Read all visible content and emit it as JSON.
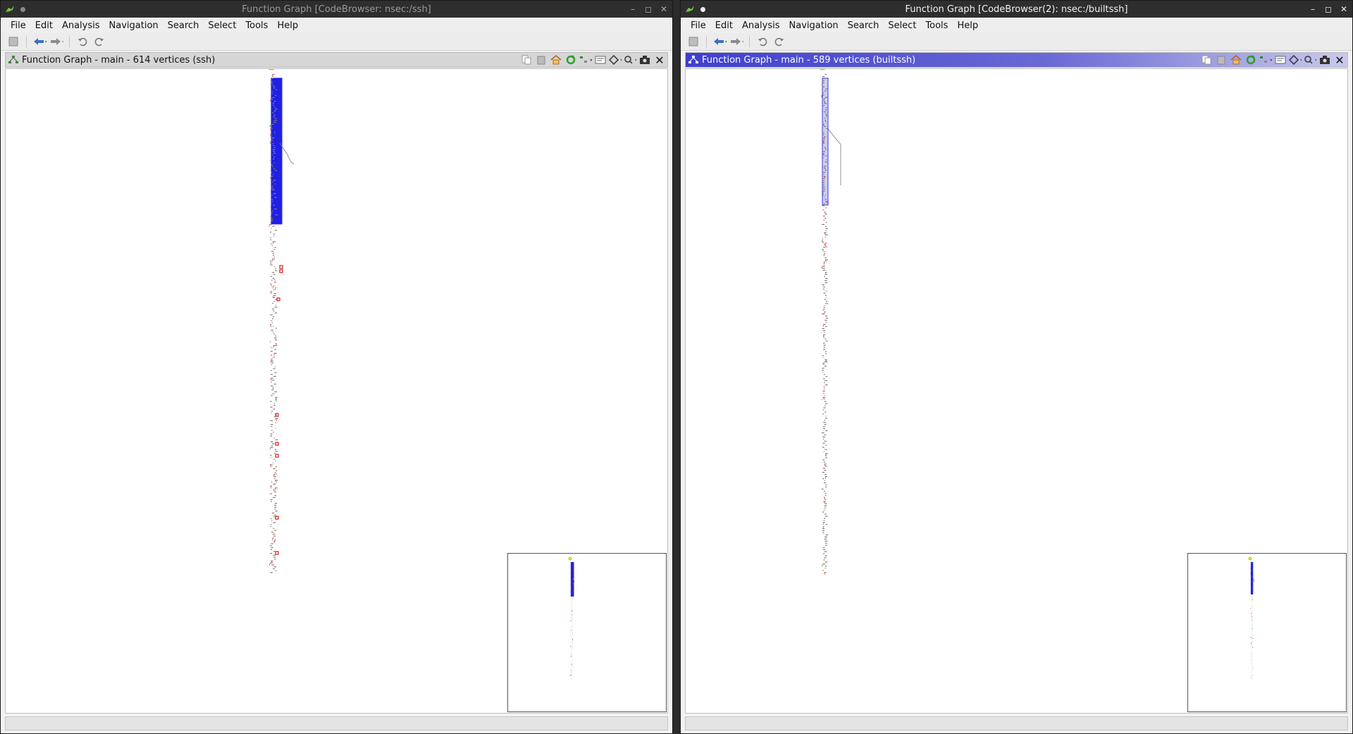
{
  "windows": [
    {
      "id": "left",
      "active": false,
      "title": "Function Graph [CodeBrowser: nsec:/ssh]",
      "menu": [
        "File",
        "Edit",
        "Analysis",
        "Navigation",
        "Search",
        "Select",
        "Tools",
        "Help"
      ],
      "panel_title": "Function Graph - main - 614 vertices  (ssh)"
    },
    {
      "id": "right",
      "active": true,
      "title": "Function Graph [CodeBrowser(2): nsec:/builtssh]",
      "menu": [
        "File",
        "Edit",
        "Analysis",
        "Navigation",
        "Search",
        "Select",
        "Tools",
        "Help"
      ],
      "panel_title": "Function Graph - main - 589 vertices  (builtssh)"
    }
  ],
  "icons": {
    "app": "dragon-icon",
    "window_controls": [
      "minimize-icon",
      "maximize-icon",
      "close-icon"
    ],
    "toolbar": [
      "save-icon",
      "back-arrow-icon",
      "forward-arrow-icon",
      "undo-icon",
      "redo-icon"
    ],
    "panel_actions": [
      "copy-icon",
      "paste-icon",
      "home-icon",
      "refresh-icon",
      "layout-icon",
      "block-format-icon",
      "navigate-icon",
      "zoom-icon",
      "snapshot-icon",
      "close-icon"
    ]
  },
  "colors": {
    "entry_vertex": "#ffff33",
    "selected_block": "#1f1fe6",
    "edge_true": "#d02020",
    "edge_false": "#1a9a1a",
    "panel_active": "#3f3fd0"
  }
}
